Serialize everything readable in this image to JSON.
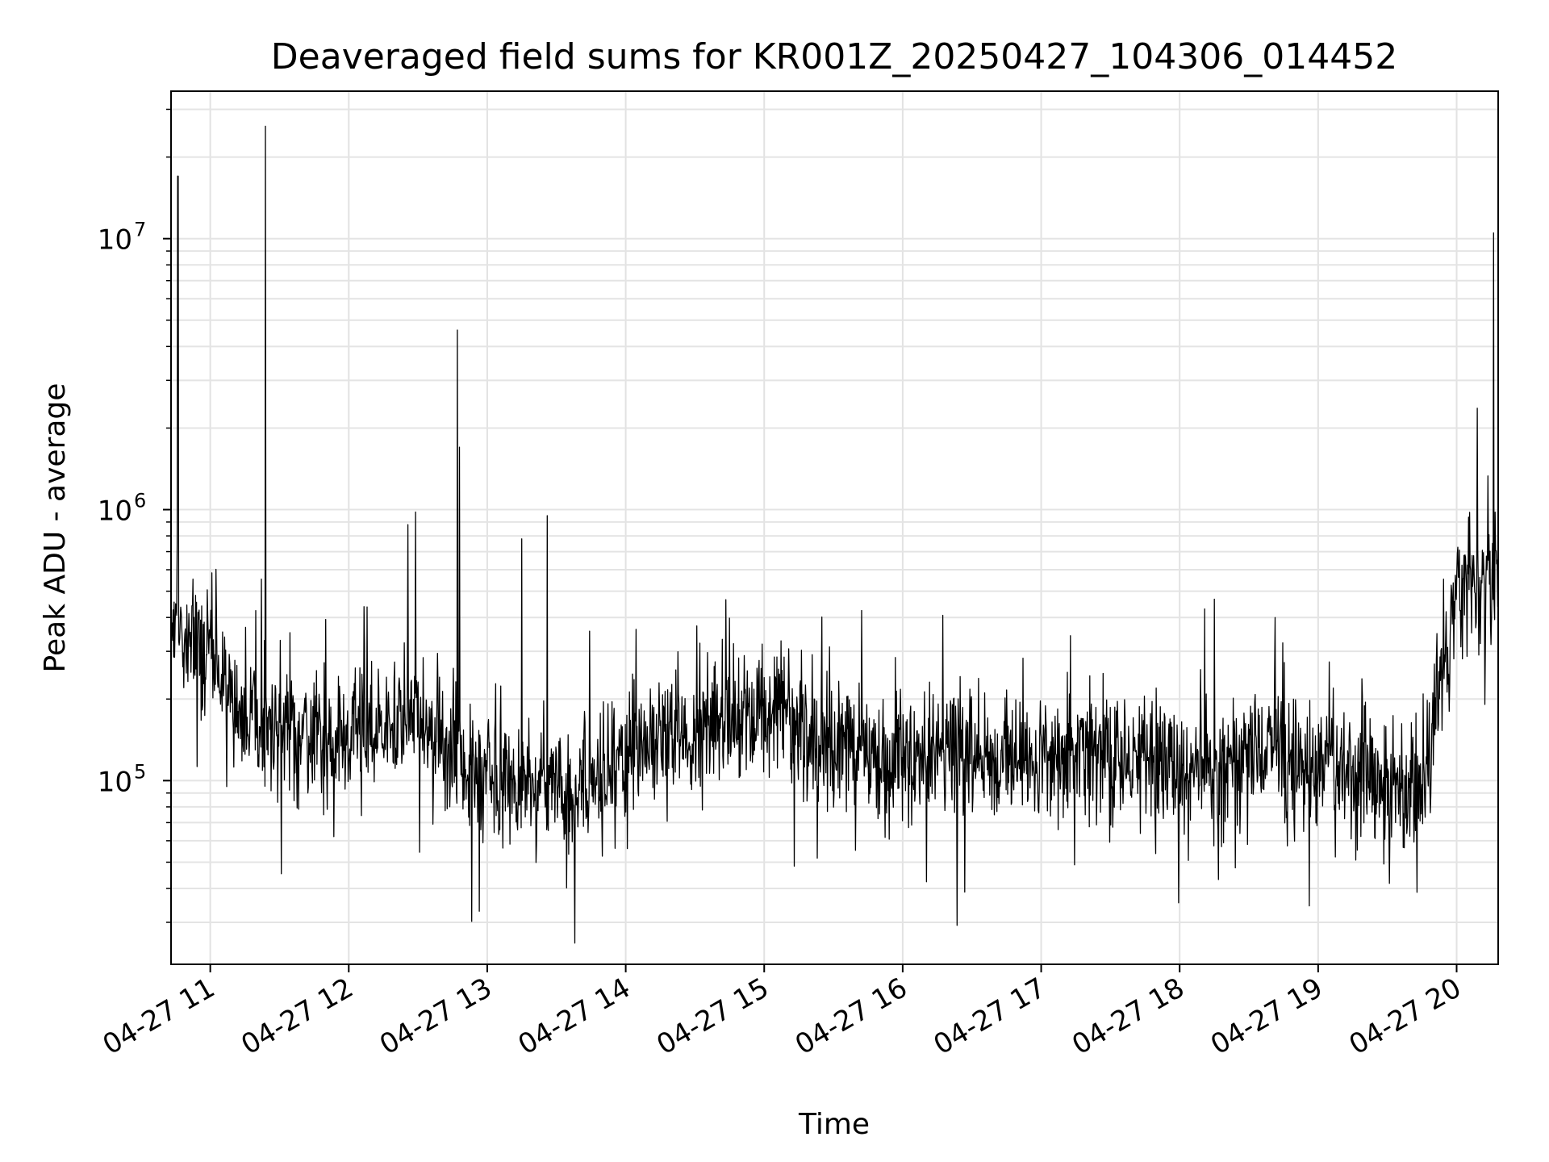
{
  "chart_data": {
    "type": "line",
    "title": "Deaveraged field sums for KR001Z_20250427_104306_014452",
    "xlabel": "Time",
    "ylabel": "Peak ADU - average",
    "yscale": "log",
    "ylim": [
      21000,
      35000000
    ],
    "xlim": [
      "2025-04-27 10:43",
      "2025-04-27 20:18"
    ],
    "grid": true,
    "x_tick_labels": [
      "04-27 11",
      "04-27 12",
      "04-27 13",
      "04-27 14",
      "04-27 15",
      "04-27 16",
      "04-27 17",
      "04-27 18",
      "04-27 19",
      "04-27 20"
    ],
    "y_ticks": [
      {
        "base": "10",
        "exp": "5",
        "value": 100000
      },
      {
        "base": "10",
        "exp": "6",
        "value": 1000000
      },
      {
        "base": "10",
        "exp": "7",
        "value": 10000000
      }
    ],
    "line_color": "#000000",
    "series": [
      {
        "x": [
          "2025-04-27 10:45",
          "2025-04-27 11:00",
          "2025-04-27 11:15",
          "2025-04-27 11:30",
          "2025-04-27 11:45",
          "2025-04-27 12:00",
          "2025-04-27 12:15",
          "2025-04-27 12:30",
          "2025-04-27 12:45",
          "2025-04-27 13:00",
          "2025-04-27 13:15",
          "2025-04-27 13:30",
          "2025-04-27 13:45",
          "2025-04-27 14:00",
          "2025-04-27 14:15",
          "2025-04-27 14:30",
          "2025-04-27 14:45",
          "2025-04-27 15:00",
          "2025-04-27 15:15",
          "2025-04-27 15:30",
          "2025-04-27 15:45",
          "2025-04-27 16:00",
          "2025-04-27 16:15",
          "2025-04-27 16:30",
          "2025-04-27 16:45",
          "2025-04-27 17:00",
          "2025-04-27 17:15",
          "2025-04-27 17:30",
          "2025-04-27 17:45",
          "2025-04-27 18:00",
          "2025-04-27 18:15",
          "2025-04-27 18:30",
          "2025-04-27 18:45",
          "2025-04-27 19:00",
          "2025-04-27 19:15",
          "2025-04-27 19:30",
          "2025-04-27 19:45",
          "2025-04-27 20:00",
          "2025-04-27 20:15"
        ],
        "y": [
          350000,
          300000,
          170000,
          160000,
          150000,
          140000,
          160000,
          170000,
          130000,
          100000,
          95000,
          90000,
          95000,
          120000,
          140000,
          150000,
          160000,
          170000,
          160000,
          130000,
          120000,
          125000,
          130000,
          125000,
          120000,
          125000,
          130000,
          125000,
          120000,
          118000,
          115000,
          120000,
          125000,
          115000,
          110000,
          100000,
          95000,
          500000,
          550000
        ]
      }
    ],
    "spikes": [
      {
        "x": "2025-04-27 10:46",
        "y": 17000000
      },
      {
        "x": "2025-04-27 11:24",
        "y": 26000000
      },
      {
        "x": "2025-04-27 12:29",
        "y": 980000
      },
      {
        "x": "2025-04-27 12:47",
        "y": 4600000
      },
      {
        "x": "2025-04-27 12:48",
        "y": 1700000
      },
      {
        "x": "2025-04-27 13:15",
        "y": 780000
      },
      {
        "x": "2025-04-27 13:26",
        "y": 950000
      },
      {
        "x": "2025-04-27 20:16",
        "y": 10500000
      }
    ]
  }
}
